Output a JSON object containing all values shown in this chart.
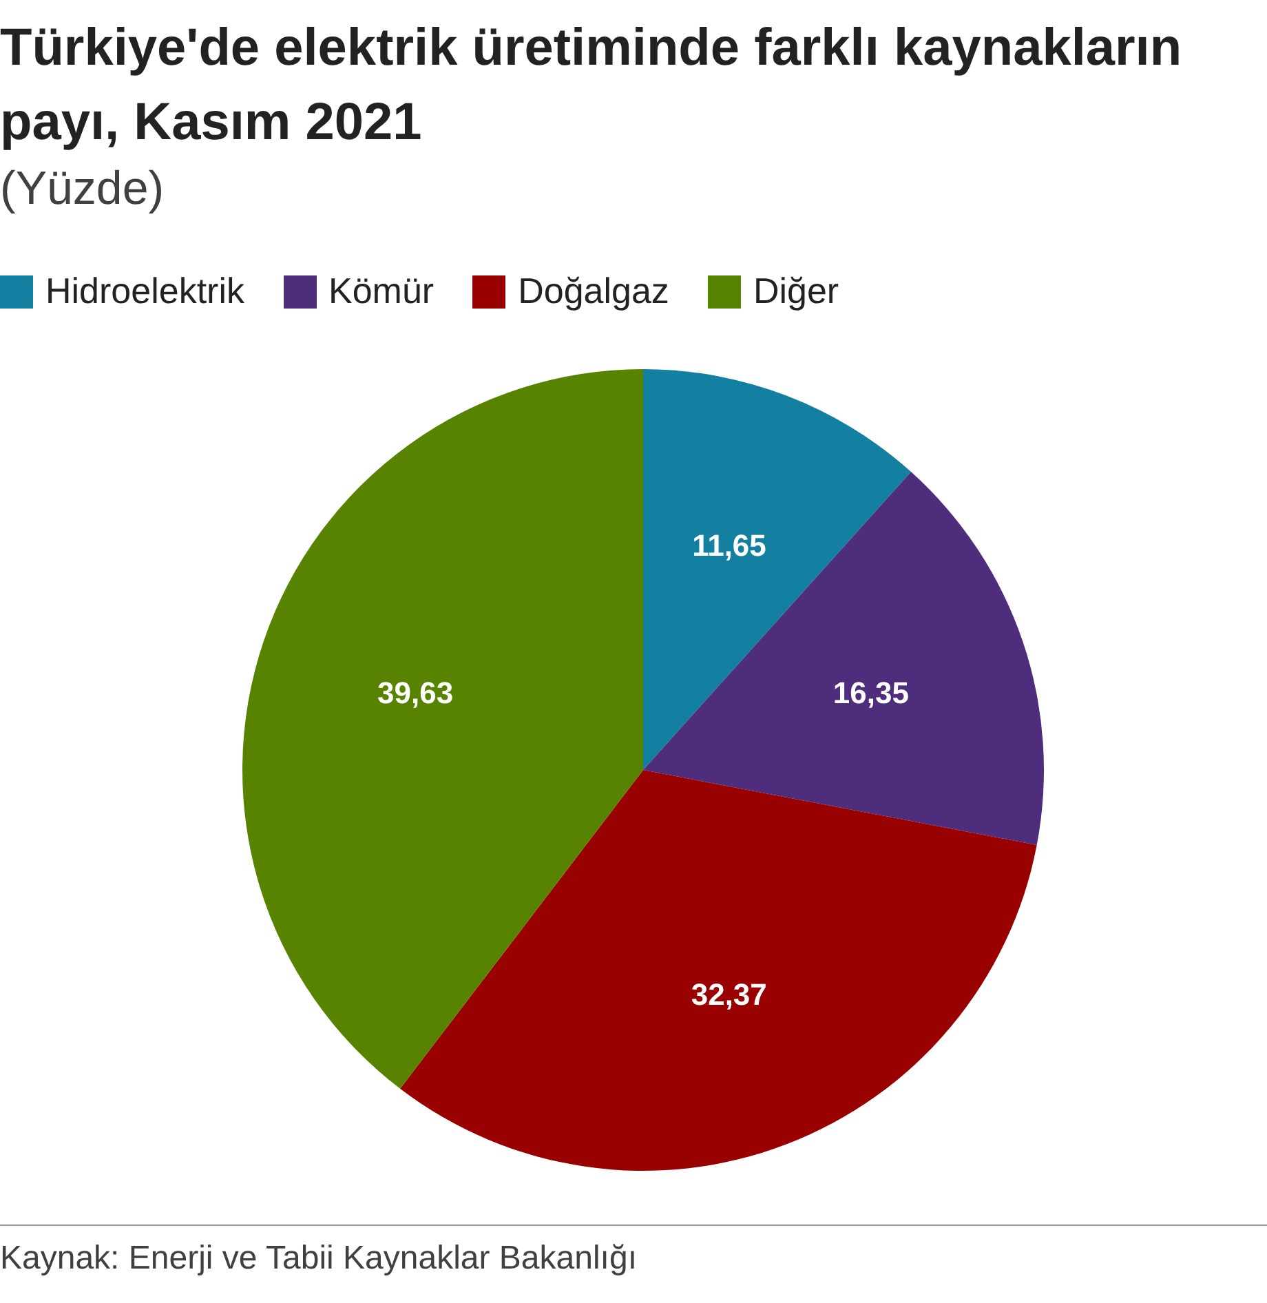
{
  "chart_data": {
    "type": "pie",
    "title": "Türkiye'de elektrik üretiminde farklı kaynakların payı, Kasım 2021",
    "subtitle": "(Yüzde)",
    "categories": [
      "Hidroelektrik",
      "Kömür",
      "Doğalgaz",
      "Diğer"
    ],
    "values": [
      11.65,
      16.35,
      32.37,
      39.63
    ],
    "value_labels": [
      "11,65",
      "16,35",
      "32,37",
      "39,63"
    ],
    "colors": [
      "#1380a1",
      "#4e2d7c",
      "#990000",
      "#588300"
    ],
    "legend": "top",
    "annotations": [
      "Kaynak: Enerji ve Tabii Kaynaklar Bakanlığı"
    ]
  }
}
